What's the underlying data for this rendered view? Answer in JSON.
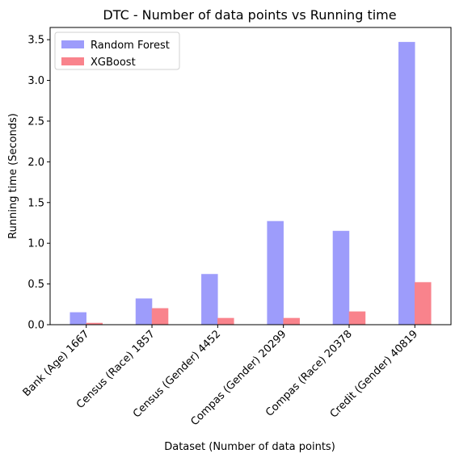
{
  "chart_data": {
    "type": "bar",
    "title": "DTC - Number of data points vs Running time",
    "xlabel": "Dataset (Number of data points)",
    "ylabel": "Running time (Seconds)",
    "categories": [
      "Bank (Age) 1667",
      "Census (Race) 1857",
      "Census (Gender) 4452",
      "Compas (Gender) 20299",
      "Compas (Race) 20378",
      "Credit (Gender) 40819"
    ],
    "series": [
      {
        "name": "Random Forest",
        "color": "#9d9cfb",
        "values": [
          0.15,
          0.32,
          0.62,
          1.27,
          1.15,
          3.47
        ]
      },
      {
        "name": "XGBoost",
        "color": "#f9838c",
        "values": [
          0.02,
          0.2,
          0.08,
          0.08,
          0.16,
          0.52
        ]
      }
    ],
    "yticks": [
      "0.0",
      "0.5",
      "1.0",
      "1.5",
      "2.0",
      "2.5",
      "3.0",
      "3.5"
    ],
    "ylim": [
      0,
      3.65
    ],
    "legend_position": "top-left",
    "grid": false
  }
}
